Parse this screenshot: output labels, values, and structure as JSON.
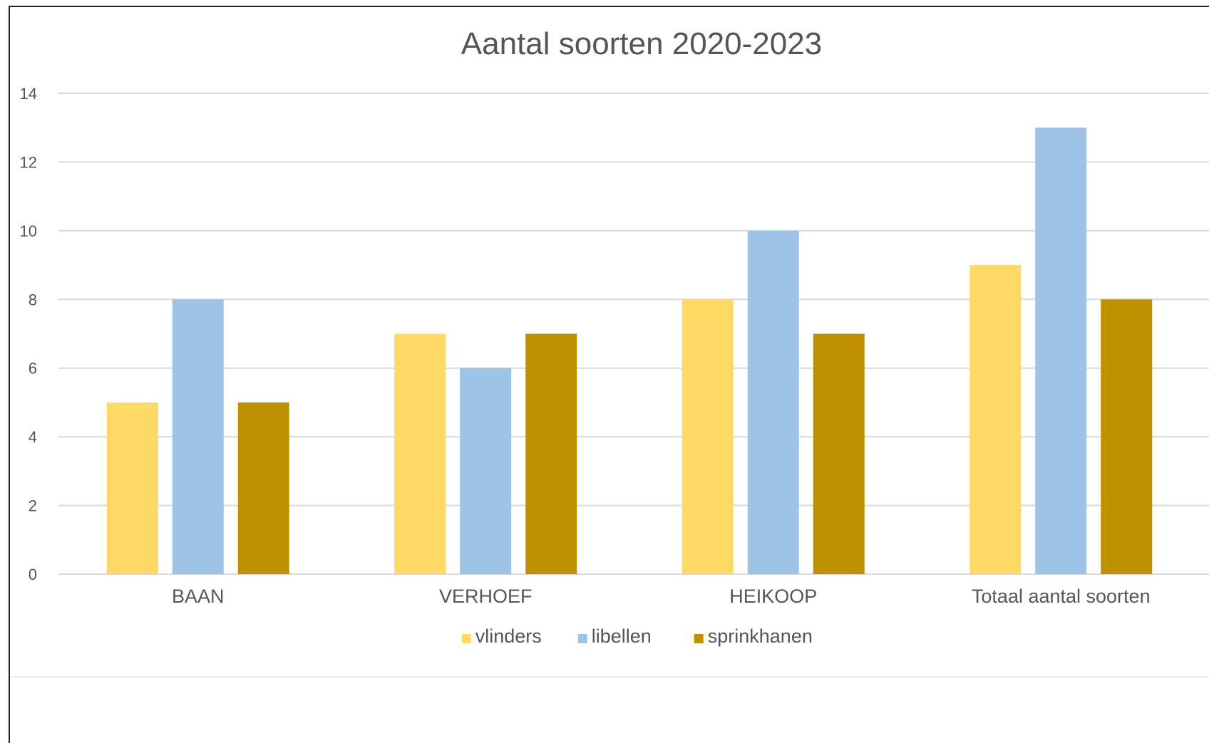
{
  "chart_data": {
    "type": "bar",
    "title": "Aantal soorten 2020-2023",
    "categories": [
      "BAAN",
      "VERHOEF",
      "HEIKOOP",
      "Totaal aantal soorten"
    ],
    "series": [
      {
        "name": "vlinders",
        "color": "#FFD966",
        "values": [
          5,
          7,
          8,
          9
        ]
      },
      {
        "name": "libellen",
        "color": "#9DC3E6",
        "values": [
          8,
          6,
          10,
          13
        ]
      },
      {
        "name": "sprinkhanen",
        "color": "#BF9000",
        "values": [
          5,
          7,
          7,
          8
        ]
      }
    ],
    "ylim": [
      0,
      14
    ],
    "yticks": [
      0,
      2,
      4,
      6,
      8,
      10,
      12,
      14
    ],
    "grid": true,
    "legend_position": "bottom"
  }
}
